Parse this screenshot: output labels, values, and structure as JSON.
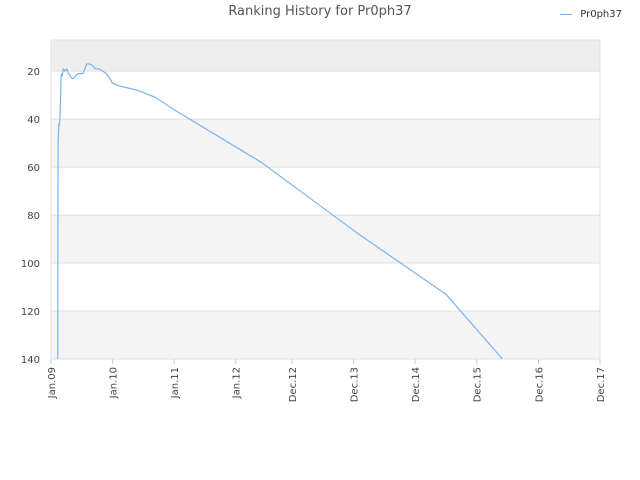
{
  "chart_data": {
    "type": "line",
    "title": "Ranking History for Pr0ph37",
    "xlabel": "",
    "ylabel": "",
    "legend_position": "top-right",
    "y_reversed": true,
    "ylim": [
      7,
      140
    ],
    "yticks": [
      20,
      40,
      60,
      80,
      100,
      120,
      140
    ],
    "xlim": [
      "2009-01",
      "2017-12"
    ],
    "xticks": [
      {
        "label": "Jan.09",
        "date": "2009-01"
      },
      {
        "label": "Jan.10",
        "date": "2010-01"
      },
      {
        "label": "Jan.11",
        "date": "2011-01"
      },
      {
        "label": "Jan.12",
        "date": "2012-01"
      },
      {
        "label": "Dec.12",
        "date": "2012-12"
      },
      {
        "label": "Dec.13",
        "date": "2013-12"
      },
      {
        "label": "Dec.14",
        "date": "2014-12"
      },
      {
        "label": "Dec.15",
        "date": "2015-12"
      },
      {
        "label": "Dec.16",
        "date": "2016-12"
      },
      {
        "label": "Dec.17",
        "date": "2017-12"
      }
    ],
    "grid": true,
    "bands": "alternating",
    "colors": {
      "series": "#7cb5ec",
      "band_dark": "#eeeeee",
      "band_light": "#f4f4f4",
      "grid": "#e0e0e0"
    },
    "series": [
      {
        "name": "Pr0ph37",
        "x": [
          "2009-02-10",
          "2009-02-12",
          "2009-02-14",
          "2009-02-16",
          "2009-02-18",
          "2009-02-22",
          "2009-02-26",
          "2009-03-02",
          "2009-03-06",
          "2009-03-09",
          "2009-03-12",
          "2009-03-16",
          "2009-03-25",
          "2009-04-05",
          "2009-04-15",
          "2009-04-25",
          "2009-05-05",
          "2009-05-15",
          "2009-05-25",
          "2009-06-10",
          "2009-06-25",
          "2009-07-10",
          "2009-08-01",
          "2009-08-20",
          "2009-09-10",
          "2009-09-20",
          "2009-10-10",
          "2009-11-05",
          "2009-11-25",
          "2009-12-15",
          "2010-01-01",
          "2010-01-05",
          "2010-02-01",
          "2010-06-01",
          "2010-09-15",
          "2010-12-31",
          "2012-06-01",
          "2014-01-01",
          "2015-06-01",
          "2016-05-01"
        ],
        "y": [
          140,
          50,
          47,
          42,
          43,
          41,
          35,
          22,
          21,
          22,
          20,
          19,
          20,
          19,
          21,
          22,
          23,
          23,
          22,
          21,
          21,
          21,
          17,
          17,
          18,
          19,
          19,
          20,
          21,
          23,
          25,
          25,
          26,
          28,
          31,
          36,
          58,
          88,
          113,
          140
        ]
      }
    ]
  }
}
